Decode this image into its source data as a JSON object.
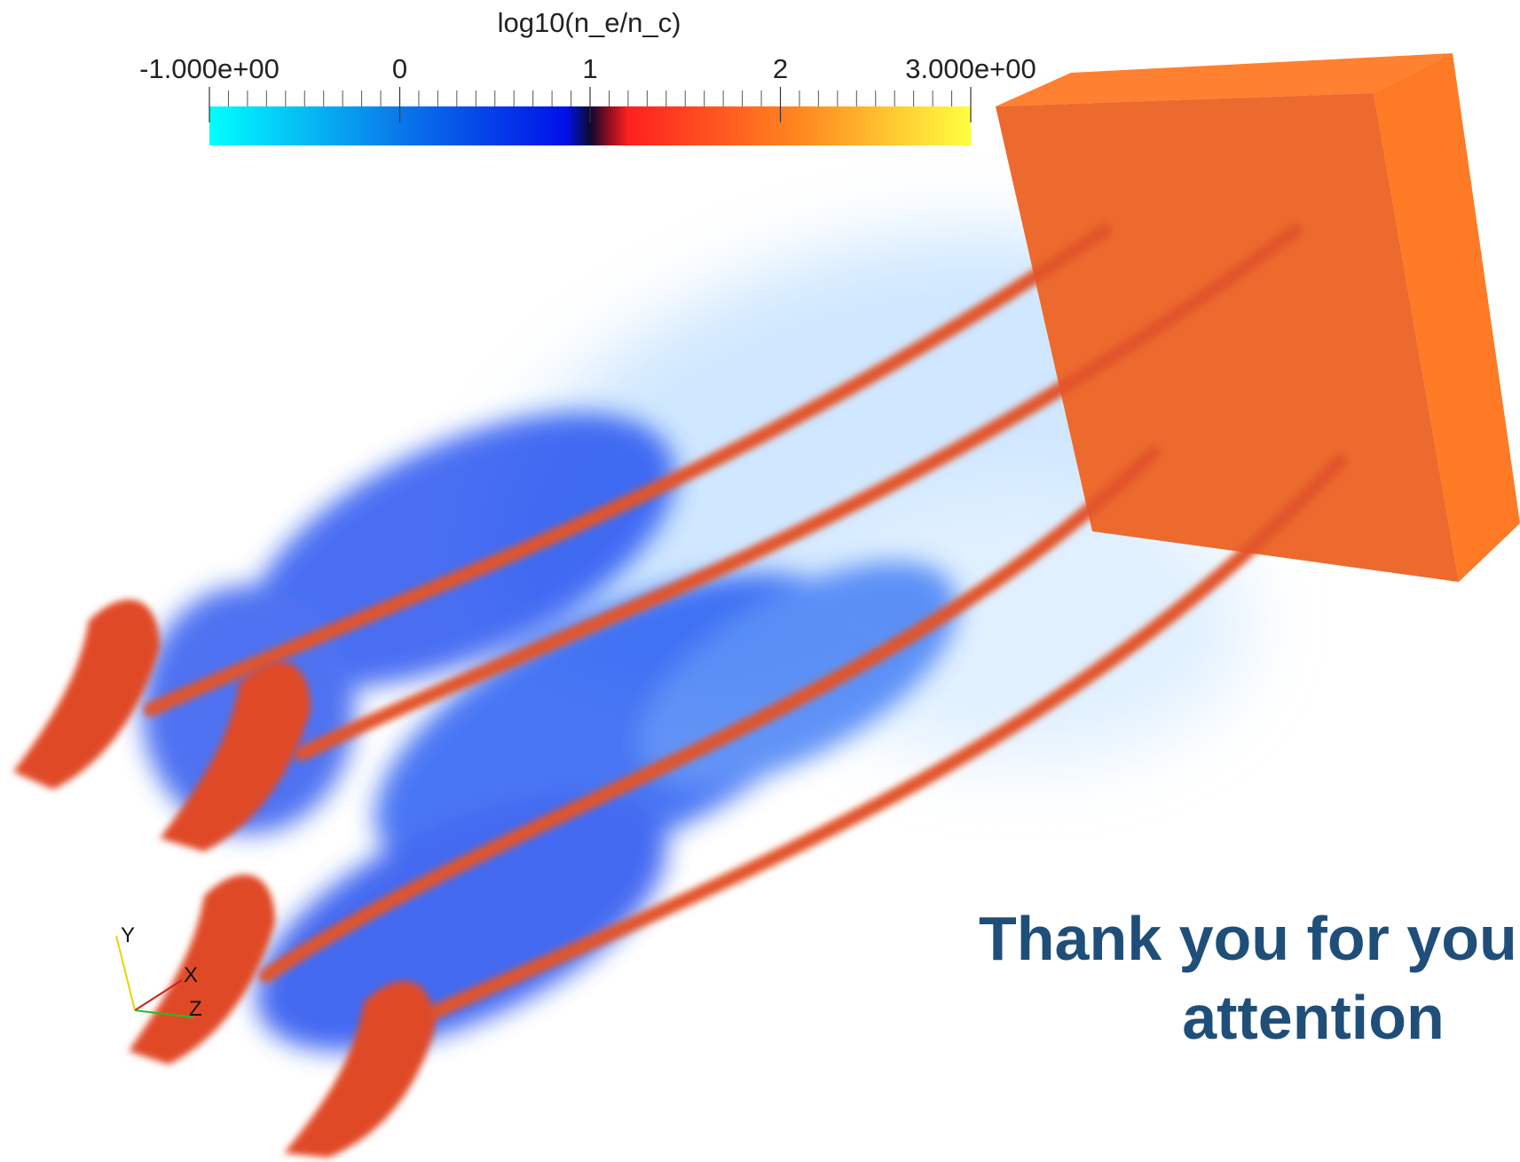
{
  "colorbar": {
    "title": "log10(n_e/n_c)",
    "range": [
      -1,
      3
    ],
    "ticks": [
      {
        "value": -1,
        "label": "-1.000e+00"
      },
      0,
      1,
      2,
      {
        "value": 3,
        "label": "3.000e+00"
      }
    ]
  },
  "orientation_axes": [
    "Y",
    "X",
    "Z"
  ],
  "slide": {
    "line1": "Thank you for your",
    "line2": "attention"
  }
}
